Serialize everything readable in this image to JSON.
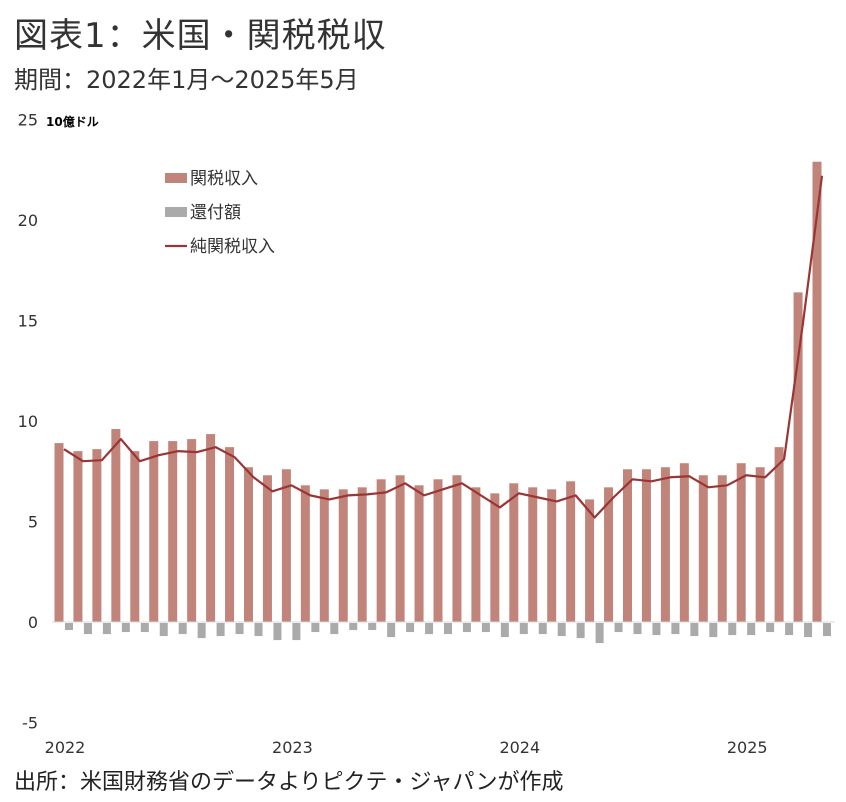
{
  "header": {
    "title": "図表1：米国・関税税収",
    "subtitle": "期間：2022年1月～2025年5月"
  },
  "footer": {
    "source": "出所：米国財務省のデータよりピクテ・ジャパンが作成"
  },
  "chart_data": {
    "type": "bar",
    "unit_label": "10億ドル",
    "ylim": [
      -5,
      25
    ],
    "yticks": [
      "25",
      "20",
      "15",
      "10",
      "5",
      "0",
      "-5"
    ],
    "xticks": [
      "2022",
      "2023",
      "2024",
      "2025"
    ],
    "period": [
      "2022-01",
      "2025-05"
    ],
    "grid": false,
    "legend_position": "top-left",
    "series": [
      {
        "name": "関税収入",
        "kind": "bar",
        "color": "#c0847b",
        "values": [
          8.9,
          8.5,
          8.6,
          9.6,
          8.5,
          9.0,
          9.0,
          9.1,
          9.35,
          8.7,
          7.7,
          7.3,
          7.6,
          6.8,
          6.6,
          6.6,
          6.7,
          7.1,
          7.3,
          6.8,
          7.1,
          7.3,
          6.7,
          6.4,
          6.9,
          6.7,
          6.6,
          7.0,
          6.1,
          6.7,
          7.6,
          7.6,
          7.7,
          7.9,
          7.3,
          7.3,
          7.9,
          7.7,
          8.7,
          16.4,
          22.9
        ]
      },
      {
        "name": "還付額",
        "kind": "bar",
        "color": "#aaaaaa",
        "values": [
          -0.35,
          -0.55,
          -0.55,
          -0.45,
          -0.45,
          -0.65,
          -0.55,
          -0.75,
          -0.65,
          -0.55,
          -0.65,
          -0.85,
          -0.85,
          -0.45,
          -0.55,
          -0.35,
          -0.35,
          -0.7,
          -0.45,
          -0.55,
          -0.55,
          -0.45,
          -0.45,
          -0.7,
          -0.55,
          -0.55,
          -0.65,
          -0.75,
          -1.0,
          -0.45,
          -0.55,
          -0.6,
          -0.55,
          -0.65,
          -0.7,
          -0.6,
          -0.6,
          -0.45,
          -0.6,
          -0.7,
          -0.65
        ]
      },
      {
        "name": "純関税収入",
        "kind": "line",
        "color": "#9b3535",
        "values": [
          8.6,
          8.0,
          8.05,
          9.1,
          8.0,
          8.3,
          8.5,
          8.45,
          8.7,
          8.2,
          7.2,
          6.5,
          6.8,
          6.3,
          6.1,
          6.3,
          6.35,
          6.45,
          6.9,
          6.3,
          6.6,
          6.9,
          6.3,
          5.7,
          6.4,
          6.2,
          6.0,
          6.3,
          5.2,
          6.2,
          7.1,
          7.0,
          7.2,
          7.25,
          6.7,
          6.8,
          7.3,
          7.2,
          8.1,
          14.9,
          22.2
        ]
      }
    ],
    "negative_tick_color": "#e00000"
  }
}
